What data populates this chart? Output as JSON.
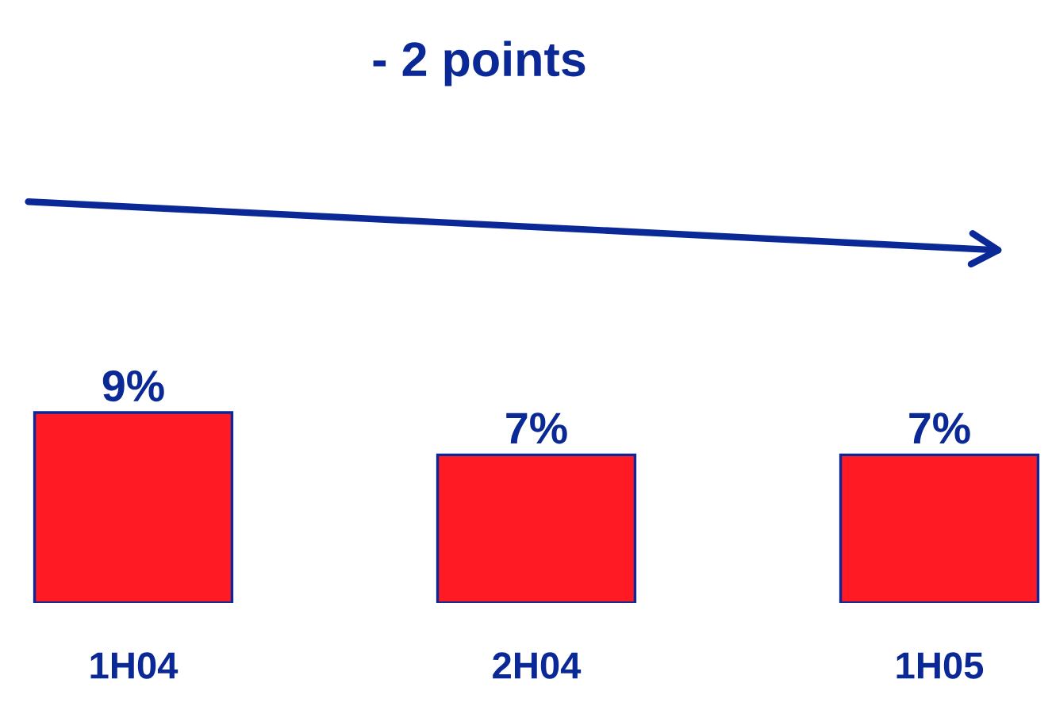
{
  "chart_data": {
    "type": "bar",
    "title": "- 2 points",
    "categories": [
      "1H04",
      "2H04",
      "1H05"
    ],
    "values": [
      9,
      7,
      7
    ],
    "value_labels": [
      "9%",
      "7%",
      "7%"
    ],
    "color": "#ff1a24",
    "grid": false,
    "legend": false
  }
}
